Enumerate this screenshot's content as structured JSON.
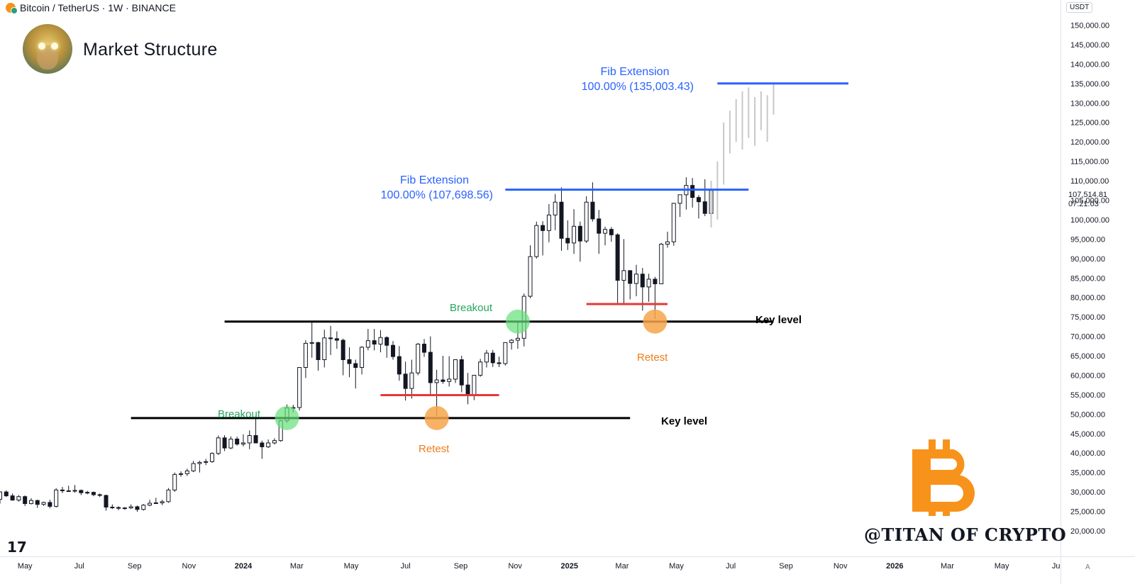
{
  "header": {
    "symbol_title": "Bitcoin / TetherUS · 1W · BINANCE",
    "chart_title": "Market Structure",
    "currency": "USDT",
    "watermark": "@TITAN OF CRYPTO",
    "tv_logo": "17",
    "scale_mode": "A",
    "last_price": "107,514.81",
    "countdown": "07:21:03"
  },
  "colors": {
    "up_body": "#ffffff",
    "down_body": "#131722",
    "wick": "#131722",
    "fib": "#2962ff",
    "key_level": "#000000",
    "support": "#e53935",
    "breakout": "#66e07a",
    "retest": "#f7a54a",
    "projection": "#c8c8c8",
    "bitcoin_logo": "#f7931a"
  },
  "annotations": {
    "fib_upper_title": "Fib Extension",
    "fib_upper_value": "100.00% (135,003.43)",
    "fib_lower_title": "Fib Extension",
    "fib_lower_value": "100.00% (107,698.56)",
    "breakout_1": "Breakout",
    "breakout_2": "Breakout",
    "retest_1": "Retest",
    "retest_2": "Retest",
    "key_level_1": "Key level",
    "key_level_2": "Key level"
  },
  "chart_data": {
    "type": "candlestick",
    "title": "Market Structure",
    "x_ticks": [
      "May",
      "Jul",
      "Sep",
      "Nov",
      "2024",
      "Mar",
      "May",
      "Jul",
      "Sep",
      "Nov",
      "2025",
      "Mar",
      "May",
      "Jul",
      "Sep",
      "Nov",
      "2026",
      "Mar",
      "May",
      "Ju"
    ],
    "x_tick_dates": [
      "2023-05-01",
      "2023-07-01",
      "2023-09-01",
      "2023-11-01",
      "2024-01-01",
      "2024-03-01",
      "2024-05-01",
      "2024-07-01",
      "2024-09-01",
      "2024-11-01",
      "2025-01-01",
      "2025-03-01",
      "2025-05-01",
      "2025-07-01",
      "2025-09-01",
      "2025-11-01",
      "2026-01-01",
      "2026-03-01",
      "2026-05-01",
      "2026-07-01"
    ],
    "y_ticks": [
      20000,
      25000,
      30000,
      35000,
      40000,
      45000,
      50000,
      55000,
      60000,
      65000,
      70000,
      75000,
      80000,
      85000,
      90000,
      95000,
      100000,
      105000,
      110000,
      115000,
      120000,
      125000,
      130000,
      135000,
      140000,
      145000,
      150000
    ],
    "y_tick_labels": [
      "20,000.00",
      "25,000.00",
      "30,000.00",
      "35,000.00",
      "40,000.00",
      "45,000.00",
      "50,000.00",
      "55,000.00",
      "60,000.00",
      "65,000.00",
      "70,000.00",
      "75,000.00",
      "80,000.00",
      "85,000.00",
      "90,000.00",
      "95,000.00",
      "100,000.00",
      "105,000.00",
      "110,000.00",
      "115,000.00",
      "120,000.00",
      "125,000.00",
      "130,000.00",
      "135,000.00",
      "140,000.00",
      "145,000.00",
      "150,000.00"
    ],
    "ylim": [
      20000,
      150000
    ],
    "xlim": [
      "2023-04-03",
      "2026-07-06"
    ],
    "candle_start": "2023-04-03",
    "candles": [
      [
        28100,
        30200,
        27000,
        30000
      ],
      [
        30000,
        30400,
        28700,
        29000
      ],
      [
        29000,
        29600,
        27800,
        27900
      ],
      [
        27900,
        29200,
        27500,
        28800
      ],
      [
        28800,
        29100,
        26400,
        27000
      ],
      [
        27000,
        28400,
        26800,
        27800
      ],
      [
        27800,
        28000,
        25900,
        26800
      ],
      [
        26800,
        27500,
        26400,
        27300
      ],
      [
        27300,
        28000,
        25800,
        26300
      ],
      [
        26300,
        31000,
        26000,
        30500
      ],
      [
        30500,
        31300,
        29700,
        30300
      ],
      [
        30300,
        31600,
        30200,
        30200
      ],
      [
        30200,
        31800,
        29800,
        30400
      ],
      [
        30400,
        30600,
        29200,
        29800
      ],
      [
        29800,
        30300,
        29400,
        29900
      ],
      [
        29900,
        30100,
        28900,
        29300
      ],
      [
        29300,
        29600,
        28700,
        29100
      ],
      [
        29100,
        29300,
        25200,
        26100
      ],
      [
        26100,
        26800,
        25600,
        26000
      ],
      [
        26000,
        26300,
        25300,
        25800
      ],
      [
        25800,
        26100,
        25400,
        25900
      ],
      [
        25900,
        26800,
        25600,
        26200
      ],
      [
        26200,
        26500,
        24900,
        25500
      ],
      [
        25500,
        26900,
        25200,
        26600
      ],
      [
        26600,
        28000,
        26300,
        27100
      ],
      [
        27100,
        28500,
        26900,
        27200
      ],
      [
        27200,
        28000,
        26600,
        27500
      ],
      [
        27500,
        31000,
        27200,
        30500
      ],
      [
        30500,
        35000,
        30000,
        34500
      ],
      [
        34500,
        35300,
        33900,
        34700
      ],
      [
        34700,
        36000,
        34100,
        35400
      ],
      [
        35400,
        38000,
        35100,
        37300
      ],
      [
        37300,
        38000,
        35000,
        37600
      ],
      [
        37600,
        38500,
        36900,
        37800
      ],
      [
        37800,
        40200,
        37500,
        39900
      ],
      [
        39900,
        44500,
        39500,
        43900
      ],
      [
        43900,
        44600,
        40500,
        41300
      ],
      [
        41300,
        44300,
        41000,
        43600
      ],
      [
        43600,
        44200,
        41900,
        42300
      ],
      [
        42300,
        44800,
        41700,
        42600
      ],
      [
        42600,
        45800,
        41000,
        44500
      ],
      [
        44500,
        48900,
        42500,
        42600
      ],
      [
        42600,
        43200,
        38500,
        41600
      ],
      [
        41600,
        43500,
        41300,
        42600
      ],
      [
        42600,
        43800,
        42200,
        43200
      ],
      [
        43200,
        48500,
        42900,
        48300
      ],
      [
        48300,
        52500,
        47800,
        51600
      ],
      [
        51600,
        52400,
        50400,
        51700
      ],
      [
        51700,
        62000,
        50900,
        62000
      ],
      [
        62000,
        69000,
        59300,
        68200
      ],
      [
        68200,
        73800,
        64500,
        68400
      ],
      [
        68400,
        68600,
        61200,
        64000
      ],
      [
        64000,
        71700,
        62000,
        69600
      ],
      [
        69600,
        72700,
        65200,
        69400
      ],
      [
        69400,
        71300,
        66800,
        69000
      ],
      [
        69000,
        69400,
        60000,
        64000
      ],
      [
        64000,
        67200,
        59500,
        63000
      ],
      [
        63000,
        64000,
        56600,
        62000
      ],
      [
        62000,
        67500,
        60200,
        67200
      ],
      [
        67200,
        71900,
        66400,
        68900
      ],
      [
        68900,
        71900,
        66400,
        68000
      ],
      [
        68000,
        71600,
        65900,
        69700
      ],
      [
        69700,
        70000,
        64500,
        67700
      ],
      [
        67700,
        68800,
        64000,
        64800
      ],
      [
        64800,
        67500,
        58600,
        60300
      ],
      [
        60300,
        63500,
        53500,
        56600
      ],
      [
        56600,
        64000,
        54000,
        60600
      ],
      [
        60600,
        68300,
        60000,
        68000
      ],
      [
        68000,
        69300,
        64700,
        65900
      ],
      [
        65900,
        70000,
        55000,
        58100
      ],
      [
        58100,
        61400,
        49500,
        58800
      ],
      [
        58800,
        65000,
        57800,
        58400
      ],
      [
        58400,
        64900,
        57100,
        59000
      ],
      [
        59000,
        64000,
        58000,
        64000
      ],
      [
        64000,
        65000,
        55600,
        57500
      ],
      [
        57500,
        60600,
        52550,
        54900
      ],
      [
        54900,
        60000,
        53600,
        60000
      ],
      [
        60000,
        64200,
        59600,
        63400
      ],
      [
        63400,
        66500,
        62000,
        65700
      ],
      [
        65700,
        66500,
        62100,
        63200
      ],
      [
        63200,
        64800,
        62100,
        63000
      ],
      [
        63000,
        68400,
        62500,
        68400
      ],
      [
        68400,
        69300,
        66600,
        69000
      ],
      [
        69000,
        73600,
        66800,
        69500
      ],
      [
        69500,
        81000,
        67400,
        80300
      ],
      [
        80300,
        93400,
        79800,
        90500
      ],
      [
        90500,
        99500,
        90000,
        98500
      ],
      [
        98500,
        99600,
        90800,
        97200
      ],
      [
        97200,
        104000,
        94200,
        101200
      ],
      [
        101200,
        106600,
        97300,
        104500
      ],
      [
        104500,
        108300,
        92000,
        95200
      ],
      [
        95200,
        99800,
        92200,
        94000
      ],
      [
        94000,
        102700,
        91200,
        98300
      ],
      [
        98300,
        99500,
        89200,
        94500
      ],
      [
        94500,
        106000,
        94000,
        104500
      ],
      [
        104500,
        109600,
        99500,
        100200
      ],
      [
        100200,
        102500,
        91200,
        96500
      ],
      [
        96500,
        98200,
        93400,
        97500
      ],
      [
        97500,
        98100,
        94300,
        96100
      ],
      [
        96100,
        96500,
        78200,
        84400
      ],
      [
        84400,
        95000,
        78200,
        86900
      ],
      [
        86900,
        87000,
        79500,
        83600
      ],
      [
        83600,
        88400,
        80300,
        86000
      ],
      [
        86000,
        87600,
        76600,
        82700
      ],
      [
        82700,
        86100,
        78900,
        84700
      ],
      [
        84700,
        85300,
        74500,
        83500
      ],
      [
        83500,
        94000,
        83500,
        93700
      ],
      [
        93700,
        96900,
        92800,
        94300
      ],
      [
        94300,
        104300,
        93300,
        104200
      ],
      [
        104200,
        106200,
        100700,
        106400
      ],
      [
        106400,
        110900,
        102600,
        108800
      ],
      [
        108800,
        110700,
        103100,
        105700
      ],
      [
        105700,
        106300,
        100300,
        104600
      ],
      [
        104600,
        110400,
        100900,
        101600
      ],
      [
        101600,
        109000,
        98500,
        107514
      ]
    ],
    "projection": [
      [
        98000,
        110000
      ],
      [
        100000,
        115000
      ],
      [
        109000,
        125000
      ],
      [
        117000,
        128000
      ],
      [
        120000,
        131000
      ],
      [
        118000,
        133000
      ],
      [
        121000,
        134000
      ],
      [
        119000,
        131500
      ],
      [
        123000,
        133000
      ],
      [
        120000,
        132000
      ],
      [
        127000,
        135000
      ]
    ],
    "projection_start": "2025-06-09",
    "levels": [
      {
        "label": "100.00% (135,003.43)",
        "price": 135003.43,
        "from": "2025-06-16",
        "to": "2025-11-10"
      },
      {
        "label": "100.00% (107,698.56)",
        "price": 107698.56,
        "from": "2024-10-21",
        "to": "2025-07-21"
      },
      {
        "label": "Key level",
        "price": 73800,
        "from": "2023-12-11",
        "to": "2025-08-18"
      },
      {
        "label": "Key level",
        "price": 49000,
        "from": "2023-08-28",
        "to": "2025-03-10"
      }
    ],
    "support_lines": [
      {
        "price": 78300,
        "from": "2025-01-20",
        "to": "2025-04-21"
      },
      {
        "price": 54900,
        "from": "2024-06-03",
        "to": "2024-10-14"
      }
    ],
    "markers": [
      {
        "kind": "breakout",
        "date": "2024-02-19",
        "price": 49000
      },
      {
        "kind": "breakout",
        "date": "2024-11-04",
        "price": 73800
      },
      {
        "kind": "retest",
        "date": "2024-08-05",
        "price": 49000
      },
      {
        "kind": "retest",
        "date": "2025-04-07",
        "price": 73800
      }
    ]
  }
}
